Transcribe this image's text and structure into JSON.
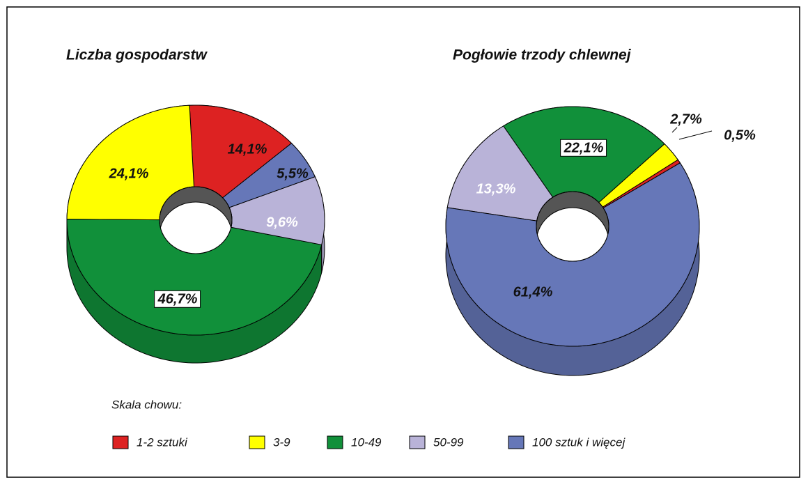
{
  "chart_data": [
    {
      "type": "donut",
      "title": "Liczba gospodarstw",
      "categories": [
        "1-2 sztuki",
        "3-9",
        "10-49",
        "50-99",
        "100 sztuk i więcej"
      ],
      "colors": [
        "#dd2222",
        "#ffff00",
        "#11903a",
        "#b9b3d8",
        "#6677b8"
      ],
      "values": [
        14.1,
        24.1,
        46.7,
        9.6,
        5.5
      ],
      "value_labels": [
        "14,1%",
        "24,1%",
        "46,7%",
        "9,6%",
        "5,5%"
      ]
    },
    {
      "type": "donut",
      "title": "Pogłowie trzody chlewnej",
      "categories": [
        "1-2 sztuki",
        "3-9",
        "10-49",
        "50-99",
        "100 sztuk i więcej"
      ],
      "colors": [
        "#dd2222",
        "#ffff00",
        "#11903a",
        "#b9b3d8",
        "#6677b8"
      ],
      "values": [
        0.5,
        2.7,
        22.1,
        13.3,
        61.4
      ],
      "value_labels": [
        "0,5%",
        "2,7%",
        "22,1%",
        "13,3%",
        "61,4%"
      ],
      "legend_title": "Skala chowu:"
    }
  ]
}
